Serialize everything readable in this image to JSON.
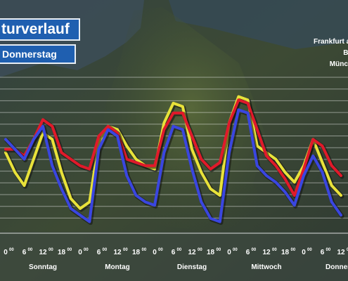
{
  "header": {
    "title": "turverlauf",
    "subtitle": "Donnerstag"
  },
  "legend": {
    "items": [
      {
        "label": "Frankfurt a.",
        "color": "#e8e23a"
      },
      {
        "label": "Be",
        "color": "#e01a2a"
      },
      {
        "label": "Münch",
        "color": "#3a46e0"
      }
    ]
  },
  "chart_data": {
    "type": "line",
    "x_ticks": [
      "0",
      "6",
      "12",
      "18",
      "0",
      "6",
      "12",
      "18",
      "0",
      "6",
      "12",
      "18",
      "0",
      "6",
      "12",
      "18",
      "0",
      "6",
      "12"
    ],
    "day_labels": [
      "Sonntag",
      "Montag",
      "Dienstag",
      "Mittwoch",
      "Donnerst"
    ],
    "x": [
      0,
      3,
      6,
      9,
      12,
      15,
      18,
      21,
      24,
      27,
      30,
      33,
      36,
      39,
      42,
      45,
      48,
      51,
      54,
      57,
      60,
      63,
      66,
      69,
      72,
      75,
      78,
      81,
      84,
      87,
      90,
      93,
      96,
      99,
      102,
      105,
      108
    ],
    "series": [
      {
        "color": "#e8e23a",
        "values": [
          5.5,
          2.5,
          0.5,
          4.5,
          8.5,
          7.5,
          2.5,
          -1.5,
          -3,
          -2,
          7,
          9.5,
          9,
          6.5,
          4.5,
          3.5,
          3,
          10,
          13,
          12.5,
          6,
          2.5,
          0,
          -1,
          10,
          14,
          13.5,
          6.5,
          5.5,
          4.5,
          2.5,
          1,
          3.5,
          7.5,
          4,
          0.5,
          -1
        ]
      },
      {
        "color": "#e01a2a",
        "values": [
          6,
          6,
          5,
          7.5,
          10.5,
          9.5,
          5.5,
          4.5,
          3.5,
          3,
          8,
          9.5,
          8.5,
          4.5,
          4,
          3.5,
          3.5,
          9,
          11.5,
          11.5,
          8,
          4.5,
          3,
          4,
          10,
          13.5,
          13,
          9,
          5,
          3.5,
          1.5,
          -1,
          3,
          7.5,
          6.5,
          3.5,
          2
        ]
      },
      {
        "color": "#3a46e0",
        "values": [
          7.5,
          6,
          4.5,
          7.5,
          9.5,
          3.5,
          0,
          -3,
          -4,
          -5,
          6,
          9,
          8,
          2,
          -1,
          -2,
          -2.5,
          5.5,
          9.5,
          9,
          3,
          -2,
          -4.5,
          -5,
          5.5,
          12,
          11.5,
          3.5,
          2,
          1,
          -0.5,
          -2.5,
          2,
          5,
          2.5,
          -2,
          -4
        ]
      }
    ],
    "ylim": [
      -6,
      18
    ],
    "grid": true
  }
}
